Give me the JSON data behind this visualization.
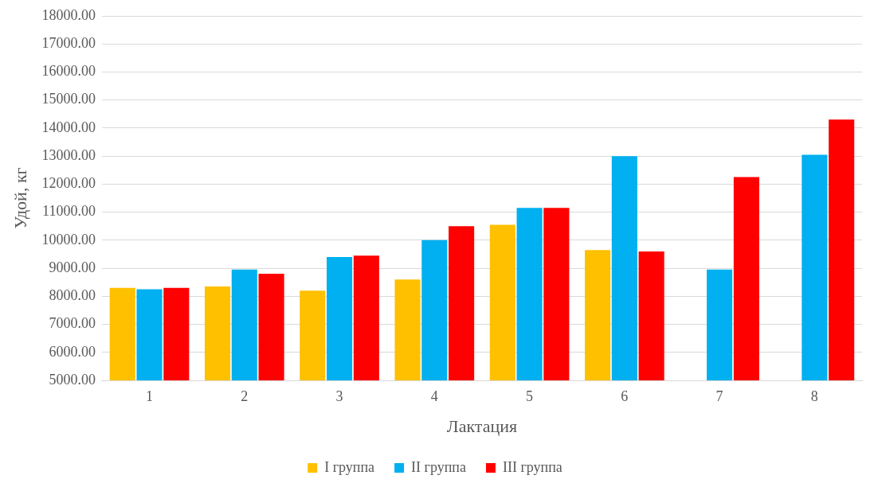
{
  "chart_data": {
    "type": "bar",
    "xlabel": "Лактация",
    "ylabel": "Удой, кг",
    "categories": [
      "1",
      "2",
      "3",
      "4",
      "5",
      "6",
      "7",
      "8"
    ],
    "series": [
      {
        "name": "I группа",
        "color": "#ffc000",
        "values": [
          8300,
          8350,
          8200,
          8600,
          10550,
          9650,
          null,
          null
        ]
      },
      {
        "name": "II группа",
        "color": "#00b0f0",
        "values": [
          8250,
          8950,
          9400,
          10000,
          11150,
          13000,
          8950,
          13050
        ]
      },
      {
        "name": "III группа",
        "color": "#ff0000",
        "values": [
          8300,
          8800,
          9450,
          10500,
          11150,
          9600,
          12250,
          14300
        ]
      }
    ],
    "ylim": [
      5000,
      18000
    ],
    "yticks": [
      {
        "value": 5000,
        "label": "5000.00"
      },
      {
        "value": 6000,
        "label": "6000.00"
      },
      {
        "value": 7000,
        "label": "7000.00"
      },
      {
        "value": 8000,
        "label": "8000.00"
      },
      {
        "value": 9000,
        "label": "9000.00"
      },
      {
        "value": 10000,
        "label": "10000.00"
      },
      {
        "value": 11000,
        "label": "11000.00"
      },
      {
        "value": 12000,
        "label": "12000.00"
      },
      {
        "value": 13000,
        "label": "13000.00"
      },
      {
        "value": 14000,
        "label": "14000.00"
      },
      {
        "value": 15000,
        "label": "15000.00"
      },
      {
        "value": 16000,
        "label": "16000.00"
      },
      {
        "value": 17000,
        "label": "17000.00"
      },
      {
        "value": 18000,
        "label": "18000.00"
      }
    ],
    "grid": "y",
    "legend": "bottom"
  }
}
